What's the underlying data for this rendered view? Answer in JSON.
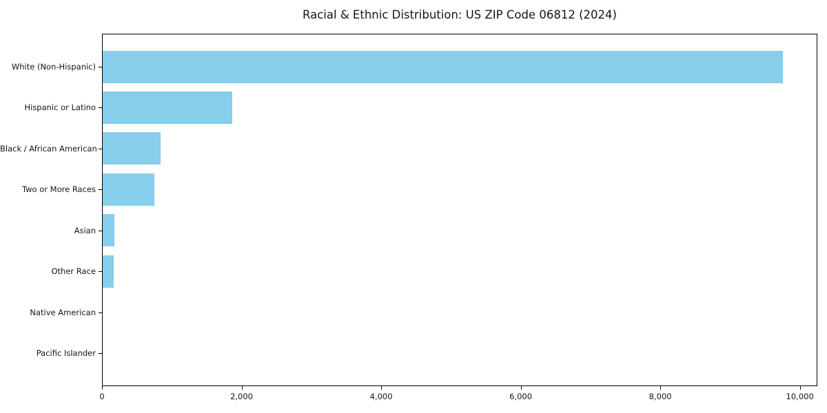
{
  "chart_data": {
    "type": "bar",
    "orientation": "horizontal",
    "title": "Racial & Ethnic Distribution: US ZIP Code 06812 (2024)",
    "categories": [
      "White (Non-Hispanic)",
      "Hispanic or Latino",
      "Black / African American",
      "Two or More Races",
      "Asian",
      "Other Race",
      "Native American",
      "Pacific Islander"
    ],
    "values": [
      9760,
      1870,
      840,
      755,
      175,
      170,
      0,
      0
    ],
    "xlabel": "",
    "ylabel": "",
    "xlim": [
      0,
      10250
    ],
    "x_ticks": [
      0,
      2000,
      4000,
      6000,
      8000,
      10000
    ],
    "x_tick_labels": [
      "0",
      "2,000",
      "4,000",
      "6,000",
      "8,000",
      "10,000"
    ],
    "bar_color": "#87CEEB",
    "axis_color": "#000000",
    "text_color": "#151515",
    "background_color": "#ffffff",
    "grid": false,
    "legend": null
  }
}
